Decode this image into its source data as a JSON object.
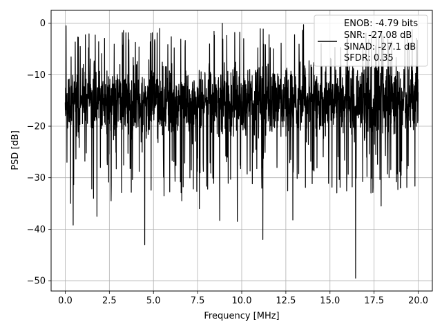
{
  "chart_data": {
    "type": "line",
    "xlabel": "Frequency [MHz]",
    "ylabel": "PSD [dB]",
    "xlim": [
      -0.8,
      20.8
    ],
    "ylim": [
      -52,
      2.5
    ],
    "xticks": [
      0.0,
      2.5,
      5.0,
      7.5,
      10.0,
      12.5,
      15.0,
      17.5,
      20.0
    ],
    "xtick_labels": [
      "0.0",
      "2.5",
      "5.0",
      "7.5",
      "10.0",
      "12.5",
      "15.0",
      "17.5",
      "20.0"
    ],
    "yticks": [
      0,
      -10,
      -20,
      -30,
      -40,
      -50
    ],
    "ytick_labels": [
      "0",
      "−10",
      "−20",
      "−30",
      "−40",
      "−50"
    ],
    "grid": true,
    "line_color": "#000000",
    "legend": {
      "placement": "top-right",
      "entries": [
        "ENOB: -4.79 bits",
        "SNR: -27.08 dB",
        "SINAD: -27.1 dB",
        "SFDR: 0.35"
      ]
    },
    "series": [
      {
        "x_range": [
          0.0,
          20.0
        ],
        "n_points": 2048,
        "y_typical_range": [
          -25,
          -5
        ],
        "y_max": 0.0,
        "y_min": -49.5,
        "dips": [
          {
            "x": 0.1,
            "y": -27.0
          },
          {
            "x": 0.3,
            "y": -35.0
          },
          {
            "x": 0.45,
            "y": -39.2
          },
          {
            "x": 1.6,
            "y": -34.0
          },
          {
            "x": 1.8,
            "y": -37.5
          },
          {
            "x": 2.6,
            "y": -34.5
          },
          {
            "x": 4.5,
            "y": -43.0
          },
          {
            "x": 5.6,
            "y": -33.5
          },
          {
            "x": 6.6,
            "y": -34.5
          },
          {
            "x": 7.6,
            "y": -36.0
          },
          {
            "x": 8.75,
            "y": -38.3
          },
          {
            "x": 9.75,
            "y": -38.5
          },
          {
            "x": 11.2,
            "y": -42.0
          },
          {
            "x": 12.9,
            "y": -38.2
          },
          {
            "x": 16.45,
            "y": -49.5
          },
          {
            "x": 17.9,
            "y": -35.5
          },
          {
            "x": 19.0,
            "y": -32.0
          }
        ],
        "peaks": [
          {
            "x": 0.05,
            "y": -0.5
          },
          {
            "x": 8.9,
            "y": 0.0
          },
          {
            "x": 13.5,
            "y": -0.3
          },
          {
            "x": 16.0,
            "y": -3.0
          },
          {
            "x": 17.2,
            "y": -3.2
          }
        ]
      }
    ]
  }
}
